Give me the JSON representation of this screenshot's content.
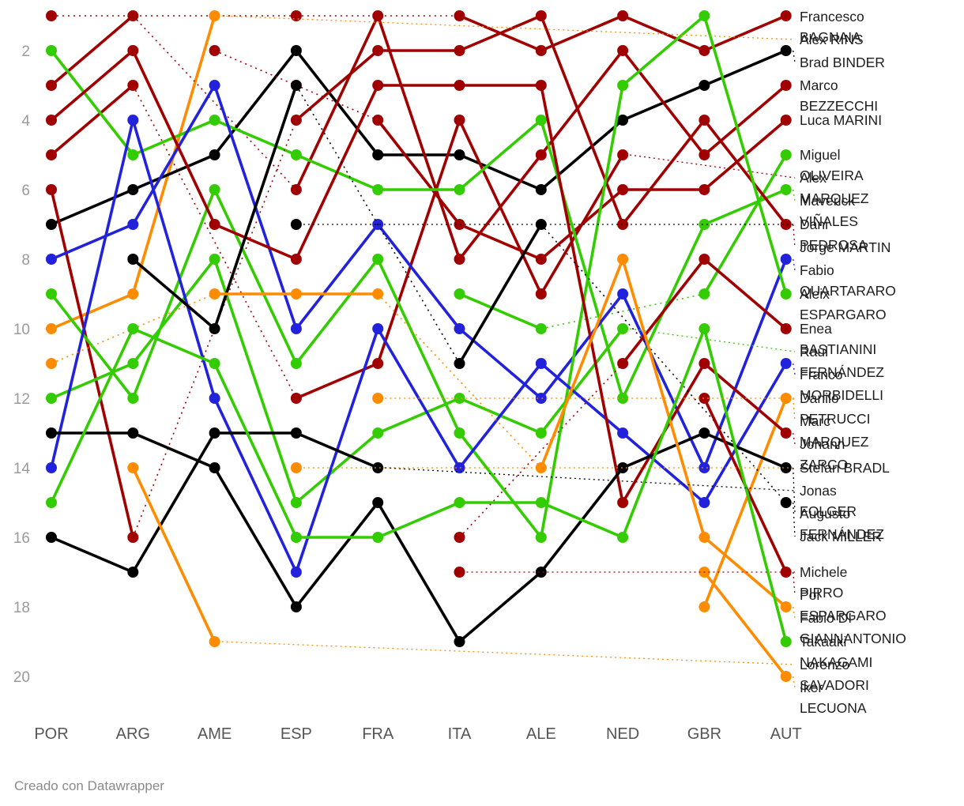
{
  "chart_data": {
    "type": "line",
    "subtype": "bump-chart",
    "title": "",
    "categories": [
      "POR",
      "ARG",
      "AME",
      "ESP",
      "FRA",
      "ITA",
      "ALE",
      "NED",
      "GBR",
      "AUT"
    ],
    "y_axis": {
      "ticks": [
        2,
        4,
        6,
        8,
        10,
        12,
        14,
        16,
        18,
        20
      ],
      "range": [
        1,
        20
      ],
      "inverted": true,
      "grid": false
    },
    "legend_position": "right",
    "palette": {
      "ducati_red": "#a00000",
      "ktm_black": "#000000",
      "aprilia_green": "#33cc00",
      "yamaha_blue": "#2222dd",
      "honda_orange": "#ff8c00"
    },
    "series": [
      {
        "name": "Francesco BAGNAIA",
        "color": "#a00000",
        "values": [
          1,
          null,
          null,
          1,
          null,
          1,
          2,
          1,
          2,
          1
        ]
      },
      {
        "name": "Alex RINS",
        "color": "#ff8c00",
        "values": [
          10,
          9,
          1,
          null,
          null,
          null,
          null,
          null,
          null,
          null
        ]
      },
      {
        "name": "Brad BINDER",
        "color": "#000000",
        "values": [
          7,
          6,
          5,
          2,
          5,
          5,
          6,
          4,
          3,
          2
        ]
      },
      {
        "name": "Marco BEZZECCHI",
        "color": "#a00000",
        "values": [
          3,
          1,
          null,
          6,
          1,
          8,
          5,
          2,
          5,
          3
        ]
      },
      {
        "name": "Luca MARINI",
        "color": "#a00000",
        "values": [
          null,
          null,
          2,
          null,
          4,
          7,
          8,
          6,
          6,
          4
        ]
      },
      {
        "name": "Miguel OLIVEIRA",
        "color": "#33cc00",
        "values": [
          null,
          null,
          null,
          null,
          null,
          9,
          10,
          null,
          9,
          5
        ]
      },
      {
        "name": "Alex MARQUEZ",
        "color": "#a00000",
        "values": [
          5,
          3,
          null,
          12,
          11,
          4,
          9,
          5,
          null,
          null
        ]
      },
      {
        "name": "Maverick VIÑALES",
        "color": "#33cc00",
        "values": [
          2,
          5,
          4,
          5,
          6,
          6,
          4,
          12,
          7,
          6
        ]
      },
      {
        "name": "Dani PEDROSA",
        "color": "#000000",
        "values": [
          null,
          null,
          null,
          7,
          null,
          null,
          null,
          null,
          null,
          null
        ]
      },
      {
        "name": "Jorge MARTIN",
        "color": "#a00000",
        "values": [
          6,
          16,
          null,
          4,
          2,
          2,
          1,
          7,
          4,
          7
        ]
      },
      {
        "name": "Fabio QUARTARARO",
        "color": "#2222dd",
        "values": [
          8,
          7,
          3,
          10,
          7,
          10,
          12,
          9,
          14,
          8
        ]
      },
      {
        "name": "Aleix ESPARGARO",
        "color": "#33cc00",
        "values": [
          9,
          12,
          6,
          11,
          8,
          13,
          16,
          3,
          1,
          9
        ]
      },
      {
        "name": "Enea BASTIANINI",
        "color": "#a00000",
        "values": [
          null,
          null,
          null,
          null,
          null,
          16,
          null,
          11,
          8,
          10
        ]
      },
      {
        "name": "Raul FERNÁNDEZ",
        "color": "#33cc00",
        "values": [
          12,
          11,
          8,
          15,
          13,
          12,
          13,
          10,
          null,
          null
        ]
      },
      {
        "name": "Franco MORBIDELLI",
        "color": "#2222dd",
        "values": [
          14,
          4,
          12,
          17,
          10,
          14,
          11,
          13,
          15,
          11
        ]
      },
      {
        "name": "Danilo PETRUCCI",
        "color": "#ff8c00",
        "values": [
          null,
          null,
          null,
          null,
          12,
          null,
          null,
          null,
          null,
          null
        ]
      },
      {
        "name": "Marc MARQUEZ",
        "color": "#ff8c00",
        "values": [
          null,
          null,
          null,
          null,
          null,
          null,
          null,
          null,
          18,
          12
        ]
      },
      {
        "name": "Johann ZARCO",
        "color": "#a00000",
        "values": [
          4,
          2,
          7,
          8,
          3,
          3,
          3,
          15,
          11,
          13
        ]
      },
      {
        "name": "Stefan BRADL",
        "color": "#ff8c00",
        "values": [
          null,
          null,
          null,
          14,
          null,
          null,
          null,
          null,
          null,
          null
        ]
      },
      {
        "name": "Jonas FOLGER",
        "color": "#000000",
        "values": [
          16,
          17,
          13,
          13,
          14,
          null,
          null,
          null,
          null,
          null
        ]
      },
      {
        "name": "Augusto FERNÁNDEZ",
        "color": "#000000",
        "values": [
          13,
          13,
          14,
          18,
          15,
          19,
          17,
          14,
          13,
          14
        ]
      },
      {
        "name": "Jack MILLER",
        "color": "#000000",
        "values": [
          null,
          8,
          10,
          3,
          null,
          11,
          7,
          null,
          null,
          15
        ]
      },
      {
        "name": "Michele PIRRO",
        "color": "#a00000",
        "values": [
          null,
          null,
          null,
          null,
          null,
          17,
          null,
          null,
          null,
          null
        ]
      },
      {
        "name": "Pol ESPARGARO",
        "color": "#a00000",
        "values": [
          null,
          null,
          null,
          null,
          null,
          null,
          null,
          null,
          12,
          17
        ]
      },
      {
        "name": "Fabio DI GIANNANTONIO",
        "color": "#ff8c00",
        "values": [
          11,
          null,
          9,
          9,
          9,
          null,
          14,
          8,
          16,
          18
        ]
      },
      {
        "name": "Takaaki NAKAGAMI",
        "color": "#33cc00",
        "values": [
          15,
          10,
          11,
          16,
          16,
          15,
          15,
          16,
          10,
          19
        ]
      },
      {
        "name": "Lorenzo SAVADORI",
        "color": "#ff8c00",
        "values": [
          null,
          14,
          19,
          null,
          null,
          null,
          null,
          null,
          null,
          null
        ]
      },
      {
        "name": "Iker LECUONA",
        "color": "#ff8c00",
        "values": [
          null,
          null,
          null,
          null,
          null,
          null,
          null,
          null,
          17,
          20
        ]
      }
    ]
  },
  "footer": {
    "attribution": "Creado con Datawrapper"
  }
}
